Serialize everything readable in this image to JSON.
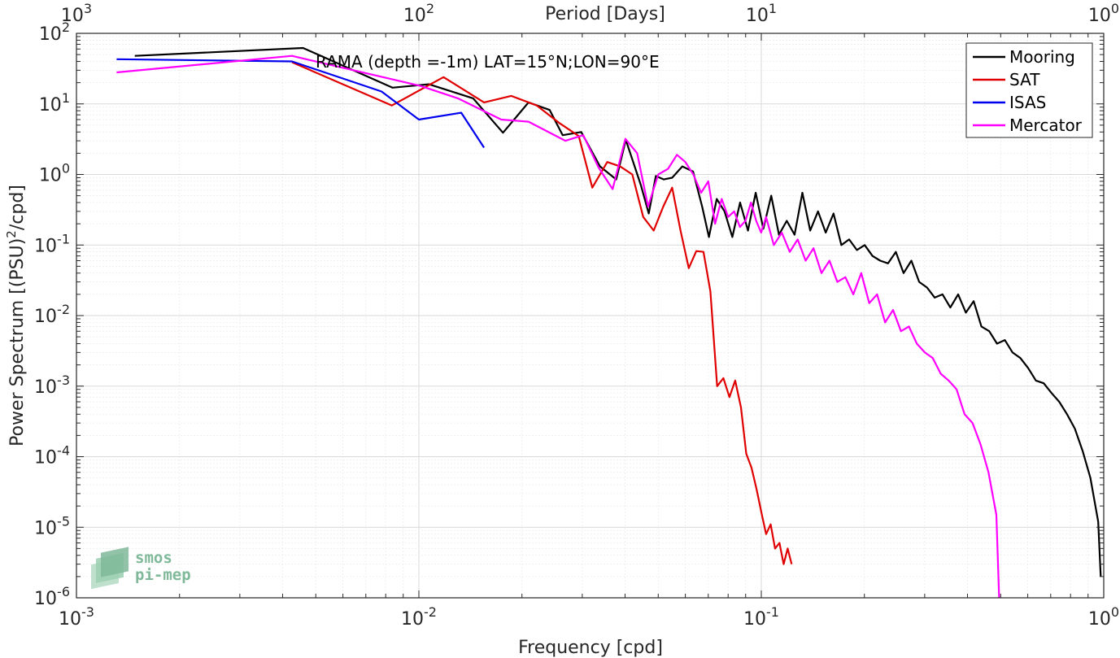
{
  "chart_data": {
    "type": "line",
    "scale": "log-log",
    "xlabel": "Frequency [cpd]",
    "ylabel": "Power Spectrum [(PSU)",
    "ylabel_sup": "2",
    "ylabel_tail": "/cpd]",
    "top_axis_label": "Period [Days]",
    "annotation": "RAMA (depth =-1m) LAT=15°N;LON=90°E",
    "xlim": [
      0.001,
      1
    ],
    "ylim": [
      1e-06,
      100
    ],
    "grid": true,
    "legend_position": "top-right",
    "x_ticks": [
      {
        "value": 0.001,
        "base": "10",
        "exp": "-3"
      },
      {
        "value": 0.01,
        "base": "10",
        "exp": "-2"
      },
      {
        "value": 0.1,
        "base": "10",
        "exp": "-1"
      },
      {
        "value": 1,
        "base": "10",
        "exp": "0"
      }
    ],
    "y_ticks": [
      {
        "value": 1e-06,
        "base": "10",
        "exp": "-6"
      },
      {
        "value": 1e-05,
        "base": "10",
        "exp": "-5"
      },
      {
        "value": 0.0001,
        "base": "10",
        "exp": "-4"
      },
      {
        "value": 0.001,
        "base": "10",
        "exp": "-3"
      },
      {
        "value": 0.01,
        "base": "10",
        "exp": "-2"
      },
      {
        "value": 0.1,
        "base": "10",
        "exp": "-1"
      },
      {
        "value": 1,
        "base": "10",
        "exp": "0"
      },
      {
        "value": 10,
        "base": "10",
        "exp": "1"
      },
      {
        "value": 100,
        "base": "10",
        "exp": "2"
      }
    ],
    "top_ticks": [
      {
        "value": 0.001,
        "base": "10",
        "exp": "3"
      },
      {
        "value": 0.01,
        "base": "10",
        "exp": "2"
      },
      {
        "value": 0.1,
        "base": "10",
        "exp": "1"
      },
      {
        "value": 1,
        "base": "10",
        "exp": "0"
      }
    ],
    "series": [
      {
        "name": "Mooring",
        "color": "#000000",
        "x": [
          0.00148,
          0.00459,
          0.00837,
          0.0107,
          0.0144,
          0.0176,
          0.0209,
          0.0241,
          0.0263,
          0.0298,
          0.0338,
          0.0377,
          0.0402,
          0.0445,
          0.0469,
          0.0492,
          0.0519,
          0.0549,
          0.0588,
          0.0632,
          0.0672,
          0.0703,
          0.0741,
          0.0781,
          0.0823,
          0.0867,
          0.0914,
          0.0963,
          0.1014,
          0.1069,
          0.1126,
          0.1187,
          0.1251,
          0.1318,
          0.1389,
          0.1464,
          0.1542,
          0.1625,
          0.1713,
          0.1805,
          0.1902,
          0.2004,
          0.2112,
          0.2225,
          0.2345,
          0.2471,
          0.2603,
          0.2743,
          0.2891,
          0.3046,
          0.321,
          0.3382,
          0.3564,
          0.3756,
          0.3957,
          0.417,
          0.4394,
          0.463,
          0.4879,
          0.5141,
          0.5417,
          0.5708,
          0.6015,
          0.6338,
          0.6679,
          0.7038,
          0.7416,
          0.7815,
          0.8235,
          0.8677,
          0.9143,
          0.9634,
          0.98
        ],
        "y": [
          48,
          62,
          17,
          19,
          12,
          3.9,
          10.5,
          8.2,
          3.6,
          4.0,
          1.3,
          0.85,
          3.1,
          0.7,
          0.28,
          0.95,
          0.85,
          0.9,
          1.3,
          1.1,
          0.35,
          0.13,
          0.45,
          0.3,
          0.13,
          0.4,
          0.16,
          0.55,
          0.17,
          0.5,
          0.14,
          0.22,
          0.14,
          0.55,
          0.16,
          0.3,
          0.15,
          0.28,
          0.1,
          0.12,
          0.085,
          0.1,
          0.07,
          0.06,
          0.055,
          0.08,
          0.04,
          0.06,
          0.03,
          0.025,
          0.018,
          0.02,
          0.013,
          0.02,
          0.011,
          0.016,
          0.007,
          0.006,
          0.004,
          0.0045,
          0.003,
          0.0025,
          0.0018,
          0.0012,
          0.0011,
          0.0008,
          0.0006,
          0.0004,
          0.00025,
          0.00012,
          5e-05,
          1.2e-05,
          2e-06
        ]
      },
      {
        "name": "SAT",
        "color": "#e00000",
        "x": [
          0.00426,
          0.00834,
          0.0118,
          0.0155,
          0.0186,
          0.0221,
          0.0258,
          0.0293,
          0.0321,
          0.0355,
          0.0387,
          0.042,
          0.0452,
          0.0485,
          0.0517,
          0.0549,
          0.0581,
          0.0614,
          0.0646,
          0.0678,
          0.071,
          0.0743,
          0.0775,
          0.0807,
          0.0839,
          0.0872,
          0.0904,
          0.0936,
          0.0968,
          0.1001,
          0.1033,
          0.1065,
          0.1097,
          0.113,
          0.1162,
          0.1194,
          0.1226
        ],
        "y": [
          39,
          9.5,
          24,
          10.5,
          13,
          9.5,
          5.3,
          3.5,
          0.65,
          1.5,
          1.3,
          1.0,
          0.25,
          0.16,
          0.35,
          0.65,
          0.16,
          0.047,
          0.082,
          0.08,
          0.022,
          0.001,
          0.0013,
          0.0007,
          0.0012,
          0.0005,
          0.00011,
          7e-05,
          3.5e-05,
          1.6e-05,
          8e-06,
          1.1e-05,
          5e-06,
          6e-06,
          3e-06,
          5e-06,
          3e-06
        ]
      },
      {
        "name": "ISAS",
        "color": "#0000ee",
        "x": [
          0.00131,
          0.00426,
          0.00778,
          0.01,
          0.0133,
          0.0155
        ],
        "y": [
          43,
          40,
          15,
          6.0,
          7.5,
          2.4
        ]
      },
      {
        "name": "Mercator",
        "color": "#ff00ff",
        "x": [
          0.00131,
          0.00426,
          0.0101,
          0.013,
          0.0174,
          0.0209,
          0.0268,
          0.0302,
          0.0335,
          0.0368,
          0.0401,
          0.0434,
          0.0467,
          0.05,
          0.0534,
          0.0567,
          0.06,
          0.0633,
          0.0667,
          0.07,
          0.0733,
          0.0766,
          0.08,
          0.0833,
          0.0866,
          0.0899,
          0.0933,
          0.0966,
          0.0999,
          0.1032,
          0.1088,
          0.1148,
          0.1211,
          0.1277,
          0.1347,
          0.1421,
          0.1499,
          0.1581,
          0.1668,
          0.176,
          0.1856,
          0.1958,
          0.2066,
          0.2179,
          0.2299,
          0.2425,
          0.2558,
          0.2698,
          0.2846,
          0.3003,
          0.3168,
          0.3342,
          0.3525,
          0.3719,
          0.3923,
          0.4138,
          0.4366,
          0.4606,
          0.4859,
          0.495
        ],
        "y": [
          28,
          48,
          18,
          12,
          6.0,
          5.6,
          3.0,
          3.6,
          1.25,
          0.62,
          3.2,
          2.0,
          0.35,
          1.0,
          1.2,
          1.9,
          1.5,
          1.0,
          0.55,
          0.8,
          0.2,
          0.45,
          0.25,
          0.3,
          0.18,
          0.22,
          0.4,
          0.22,
          0.15,
          0.25,
          0.1,
          0.15,
          0.08,
          0.12,
          0.06,
          0.09,
          0.04,
          0.06,
          0.03,
          0.035,
          0.02,
          0.04,
          0.015,
          0.02,
          0.008,
          0.012,
          0.006,
          0.007,
          0.004,
          0.003,
          0.0025,
          0.0015,
          0.0012,
          0.0009,
          0.0004,
          0.0003,
          0.00015,
          6e-05,
          1.5e-05,
          1e-06
        ]
      }
    ]
  },
  "logo": {
    "line1": "smos",
    "line2": "pi-mep"
  }
}
